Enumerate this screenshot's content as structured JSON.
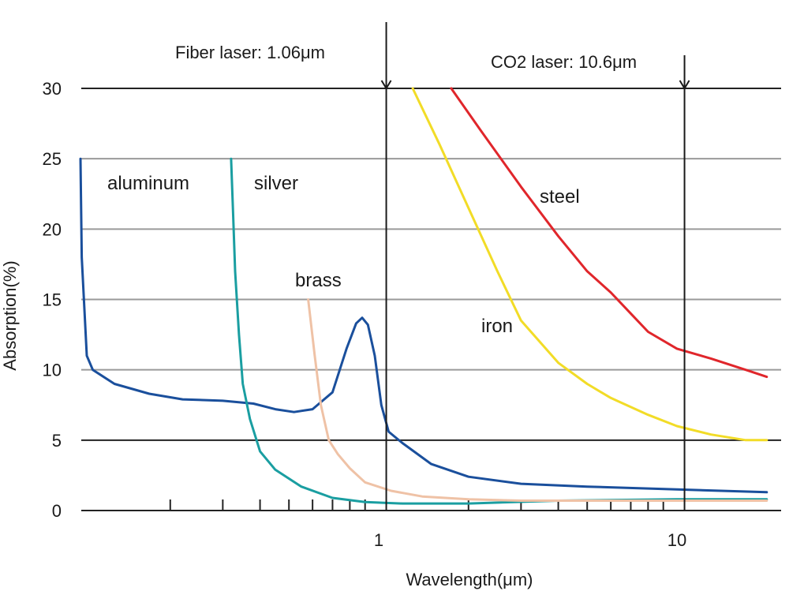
{
  "chart_data": {
    "type": "line",
    "title": "",
    "xlabel": "Wavelength(μm)",
    "ylabel": "Absorption(%)",
    "x_scale": "log",
    "xlim": [
      0.1,
      20
    ],
    "ylim": [
      0,
      30
    ],
    "yticks": [
      "0",
      "5",
      "10",
      "15",
      "20",
      "25",
      "30"
    ],
    "xtick_labels": [
      "1",
      "10"
    ],
    "grid": "horizontal",
    "legend": "none (series labeled inline on the chart)",
    "annotations": [
      {
        "text": "Fiber laser: 1.06μm",
        "x": 1.06
      },
      {
        "text": "CO2 laser: 10.6μm",
        "x": 10.6
      }
    ],
    "series": [
      {
        "name": "aluminum",
        "color": "#1a4f9c",
        "points": [
          [
            0.1,
            25
          ],
          [
            0.101,
            18
          ],
          [
            0.105,
            11
          ],
          [
            0.11,
            10
          ],
          [
            0.13,
            9
          ],
          [
            0.17,
            8.3
          ],
          [
            0.22,
            7.9
          ],
          [
            0.3,
            7.8
          ],
          [
            0.38,
            7.6
          ],
          [
            0.45,
            7.2
          ],
          [
            0.52,
            7.0
          ],
          [
            0.6,
            7.2
          ],
          [
            0.7,
            8.4
          ],
          [
            0.78,
            11.5
          ],
          [
            0.84,
            13.3
          ],
          [
            0.88,
            13.7
          ],
          [
            0.92,
            13.2
          ],
          [
            0.97,
            11
          ],
          [
            1.02,
            7.5
          ],
          [
            1.08,
            5.6
          ],
          [
            1.2,
            4.8
          ],
          [
            1.5,
            3.3
          ],
          [
            2,
            2.4
          ],
          [
            3,
            1.9
          ],
          [
            5,
            1.7
          ],
          [
            10,
            1.5
          ],
          [
            20,
            1.3
          ]
        ]
      },
      {
        "name": "silver",
        "color": "#1a9ea1",
        "points": [
          [
            0.32,
            25
          ],
          [
            0.325,
            21
          ],
          [
            0.33,
            17
          ],
          [
            0.34,
            12.5
          ],
          [
            0.35,
            9
          ],
          [
            0.37,
            6.5
          ],
          [
            0.4,
            4.2
          ],
          [
            0.45,
            2.9
          ],
          [
            0.55,
            1.7
          ],
          [
            0.7,
            0.9
          ],
          [
            0.9,
            0.6
          ],
          [
            1.2,
            0.5
          ],
          [
            2,
            0.5
          ],
          [
            4,
            0.7
          ],
          [
            10,
            0.8
          ],
          [
            20,
            0.8
          ]
        ]
      },
      {
        "name": "brass",
        "color": "#efc2a6",
        "points": [
          [
            0.58,
            15
          ],
          [
            0.61,
            11
          ],
          [
            0.64,
            7.5
          ],
          [
            0.68,
            5
          ],
          [
            0.73,
            4
          ],
          [
            0.8,
            3
          ],
          [
            0.9,
            2
          ],
          [
            1.1,
            1.4
          ],
          [
            1.4,
            1.0
          ],
          [
            2,
            0.8
          ],
          [
            3,
            0.7
          ],
          [
            5,
            0.7
          ],
          [
            10,
            0.7
          ],
          [
            20,
            0.7
          ]
        ]
      },
      {
        "name": "iron",
        "color": "#f2dc27",
        "points": [
          [
            1.3,
            30
          ],
          [
            1.6,
            26
          ],
          [
            2,
            21.5
          ],
          [
            2.5,
            17
          ],
          [
            3,
            13.5
          ],
          [
            4,
            10.5
          ],
          [
            5,
            9
          ],
          [
            6,
            8
          ],
          [
            8,
            6.8
          ],
          [
            10,
            6
          ],
          [
            13,
            5.4
          ],
          [
            17,
            5
          ],
          [
            20,
            5
          ]
        ]
      },
      {
        "name": "steel",
        "color": "#e0262b",
        "points": [
          [
            1.75,
            30
          ],
          [
            2.2,
            27
          ],
          [
            3,
            23
          ],
          [
            4,
            19.5
          ],
          [
            5,
            17
          ],
          [
            6,
            15.5
          ],
          [
            7,
            14
          ],
          [
            8,
            12.7
          ],
          [
            10,
            11.5
          ],
          [
            13,
            10.8
          ],
          [
            17,
            10
          ],
          [
            20,
            9.5
          ]
        ]
      }
    ]
  }
}
